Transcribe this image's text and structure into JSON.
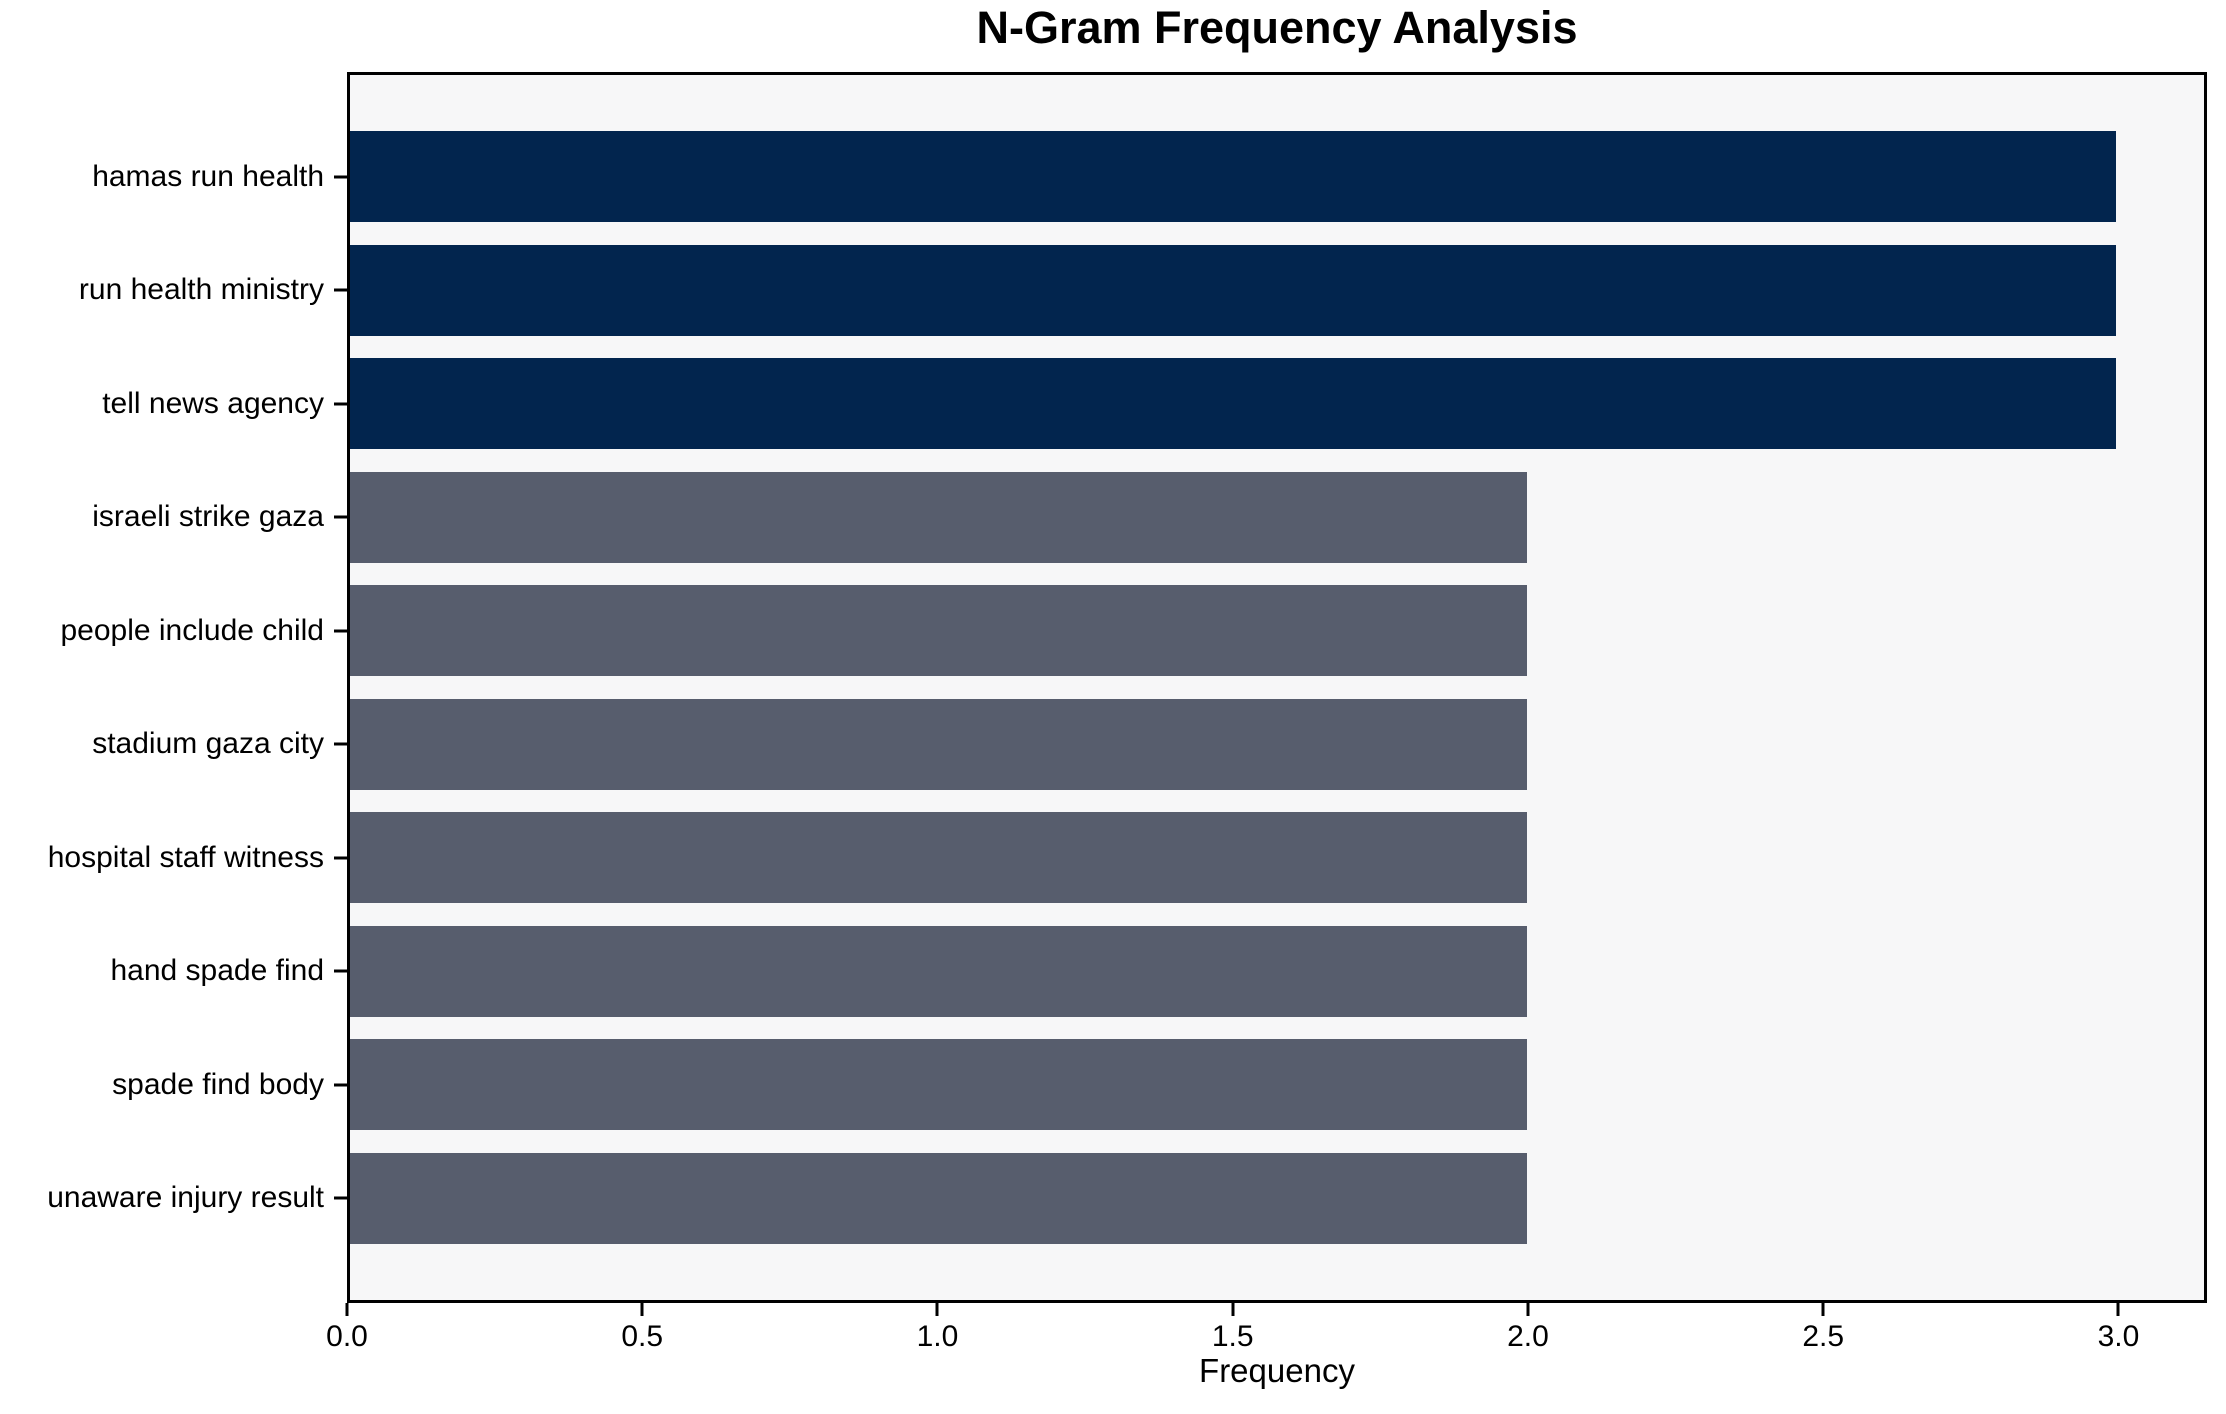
{
  "chart_data": {
    "type": "bar",
    "orientation": "horizontal",
    "title": "N-Gram Frequency Analysis",
    "xlabel": "Frequency",
    "ylabel": "",
    "categories": [
      "hamas run health",
      "run health ministry",
      "tell news agency",
      "israeli strike gaza",
      "people include child",
      "stadium gaza city",
      "hospital staff witness",
      "hand spade find",
      "spade find body",
      "unaware injury result"
    ],
    "values": [
      3,
      3,
      3,
      2,
      2,
      2,
      2,
      2,
      2,
      2
    ],
    "xlim": [
      0,
      3.15
    ],
    "xticks": [
      0.0,
      0.5,
      1.0,
      1.5,
      2.0,
      2.5,
      3.0
    ],
    "xtick_labels": [
      "0.0",
      "0.5",
      "1.0",
      "1.5",
      "2.0",
      "2.5",
      "3.0"
    ],
    "highlight_threshold": 3,
    "colors": {
      "highlight_bar": "#02254E",
      "base_bar": "#575D6D",
      "plot_background": "#F7F7F8",
      "axis": "#000000",
      "text": "#000000"
    },
    "grid": false,
    "legend_position": "none"
  }
}
